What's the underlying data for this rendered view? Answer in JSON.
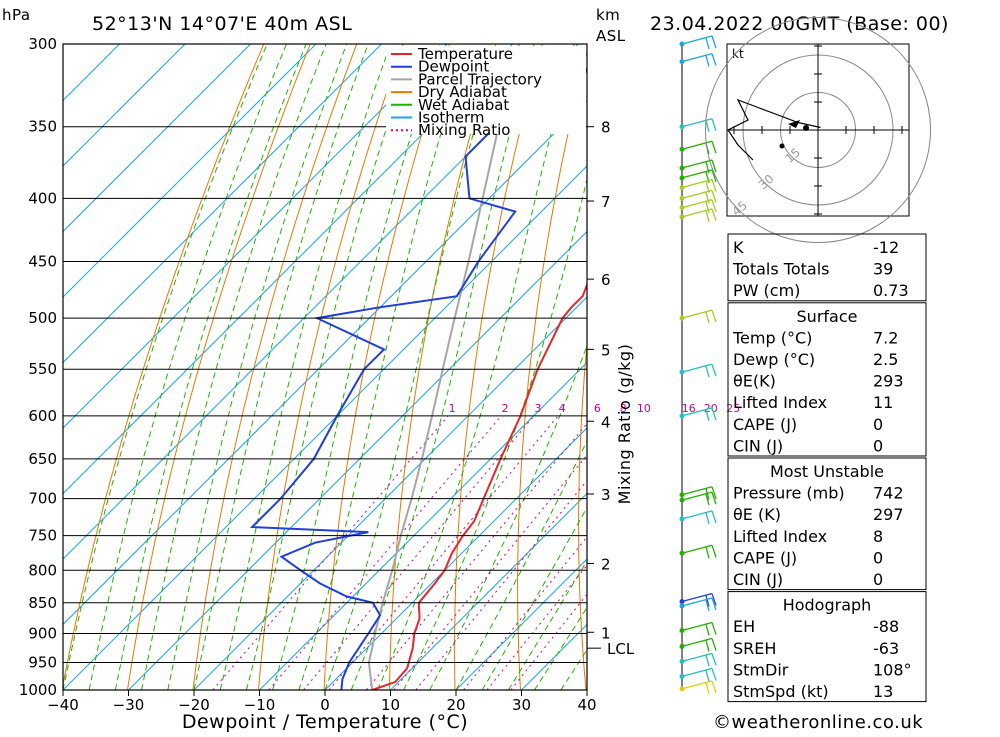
{
  "header": {
    "pressure_unit": "hPa",
    "location": "52°13'N 14°07'E 40m ASL",
    "km_unit": "km",
    "asl_unit": "ASL",
    "datetime": "23.04.2022 00GMT (Base: 00)"
  },
  "footer": {
    "copyright": "©weatheronline.co.uk"
  },
  "colors": {
    "temperature": "#e8262b",
    "dewpoint": "#1f3fdc",
    "parcel": "#a6a6a6",
    "dry_adiabat": "#e07b00",
    "wet_adiabat": "#22b000",
    "isotherm": "#1aa3e6",
    "mixing_ratio": "#cc0099"
  },
  "chart_data": {
    "type": "line",
    "title": "",
    "xlabel": "Dewpoint / Temperature (°C)",
    "ylabel": "hPa",
    "y2label": "Mixing Ratio (g/kg)",
    "xlim": [
      -40,
      40
    ],
    "ylim": [
      1000,
      300
    ],
    "y_scale": "log",
    "skew": true,
    "pressure_ticks": [
      300,
      350,
      400,
      450,
      500,
      550,
      600,
      650,
      700,
      750,
      800,
      850,
      900,
      950,
      1000
    ],
    "temp_ticks": [
      -40,
      -30,
      -20,
      -10,
      0,
      10,
      20,
      30,
      40
    ],
    "km_ticks": [
      {
        "label": "8",
        "p": 350
      },
      {
        "label": "7",
        "p": 402
      },
      {
        "label": "6",
        "p": 465
      },
      {
        "label": "5",
        "p": 530
      },
      {
        "label": "4",
        "p": 606
      },
      {
        "label": "3",
        "p": 694
      },
      {
        "label": "2",
        "p": 790
      },
      {
        "label": "1",
        "p": 898
      }
    ],
    "lcl": {
      "label": "LCL",
      "p": 925
    },
    "mixing_ratio_labels": [
      "1",
      "2",
      "3",
      "4",
      "6",
      "8",
      "10",
      "16",
      "20",
      "25"
    ],
    "legend": {
      "position": "top-right",
      "entries": [
        "Temperature",
        "Dewpoint",
        "Parcel Trajectory",
        "Dry Adiabat",
        "Wet Adiabat",
        "Isotherm",
        "Mixing Ratio"
      ]
    },
    "series": [
      {
        "name": "Temperature",
        "points": [
          [
            1000,
            7.2
          ],
          [
            985,
            9.5
          ],
          [
            960,
            9.2
          ],
          [
            925,
            7.0
          ],
          [
            900,
            5.0
          ],
          [
            875,
            3.5
          ],
          [
            850,
            1.0
          ],
          [
            820,
            0.5
          ],
          [
            800,
            0.0
          ],
          [
            775,
            -1.5
          ],
          [
            750,
            -2.5
          ],
          [
            730,
            -3.0
          ],
          [
            700,
            -5.0
          ],
          [
            650,
            -8.5
          ],
          [
            600,
            -12.0
          ],
          [
            550,
            -16.5
          ],
          [
            500,
            -20.5
          ],
          [
            490,
            -20.8
          ],
          [
            480,
            -20.8
          ],
          [
            450,
            -24.0
          ],
          [
            400,
            -30.0
          ],
          [
            350,
            -38.0
          ],
          [
            320,
            -42.5
          ],
          [
            300,
            -45.0
          ]
        ]
      },
      {
        "name": "Dewpoint",
        "points": [
          [
            1000,
            2.5
          ],
          [
            980,
            1.0
          ],
          [
            950,
            -0.5
          ],
          [
            900,
            -2.0
          ],
          [
            870,
            -3.0
          ],
          [
            850,
            -6.0
          ],
          [
            840,
            -11.0
          ],
          [
            820,
            -17.0
          ],
          [
            800,
            -22.0
          ],
          [
            780,
            -27.0
          ],
          [
            760,
            -24.0
          ],
          [
            745,
            -17.5
          ],
          [
            738,
            -36.0
          ],
          [
            710,
            -36.0
          ],
          [
            700,
            -36.0
          ],
          [
            650,
            -37.0
          ],
          [
            600,
            -40.0
          ],
          [
            550,
            -43.0
          ],
          [
            530,
            -43.0
          ],
          [
            500,
            -58.0
          ],
          [
            490,
            -50.0
          ],
          [
            480,
            -40.0
          ],
          [
            450,
            -42.0
          ],
          [
            410,
            -44.0
          ],
          [
            400,
            -53.0
          ],
          [
            370,
            -60.0
          ],
          [
            355,
            -60.0
          ],
          [
            340,
            -57.5
          ],
          [
            330,
            -56.0
          ],
          [
            320,
            -54.0
          ],
          [
            300,
            -57.0
          ]
        ]
      },
      {
        "name": "Parcel Trajectory",
        "points": [
          [
            1000,
            7.2
          ],
          [
            950,
            2.5
          ],
          [
            925,
            0.8
          ],
          [
            900,
            -1.0
          ],
          [
            850,
            -4.5
          ],
          [
            800,
            -8.0
          ],
          [
            750,
            -12.0
          ],
          [
            700,
            -16.0
          ],
          [
            650,
            -20.5
          ],
          [
            600,
            -25.5
          ],
          [
            550,
            -31.0
          ],
          [
            500,
            -37.0
          ],
          [
            450,
            -43.5
          ],
          [
            400,
            -51.0
          ],
          [
            350,
            -59.5
          ],
          [
            300,
            -69.0
          ]
        ]
      }
    ],
    "hodograph": {
      "unit": "kt",
      "rings": [
        {
          "label": "15",
          "r": 15
        },
        {
          "label": "30",
          "r": 30
        },
        {
          "label": "45",
          "r": 45
        }
      ],
      "trace": [
        [
          0.5,
          0.5
        ],
        [
          -4,
          1.5
        ],
        [
          -8,
          3
        ],
        [
          -12,
          4.5
        ],
        [
          -16,
          6
        ],
        [
          -14,
          2
        ],
        [
          -18,
          0
        ],
        [
          -16,
          -3
        ],
        [
          -13,
          -6
        ]
      ]
    },
    "wind_barbs": [
      {
        "p": 300,
        "color": "#1aa3e6"
      },
      {
        "p": 310,
        "color": "#1aa3e6"
      },
      {
        "p": 350,
        "color": "#22c0c0"
      },
      {
        "p": 365,
        "color": "#22b000"
      },
      {
        "p": 378,
        "color": "#22b000"
      },
      {
        "p": 385,
        "color": "#22b000"
      },
      {
        "p": 392,
        "color": "#a0d020"
      },
      {
        "p": 400,
        "color": "#a0d020"
      },
      {
        "p": 407,
        "color": "#a0d020"
      },
      {
        "p": 414,
        "color": "#a0d020"
      },
      {
        "p": 500,
        "color": "#a0d020"
      },
      {
        "p": 553,
        "color": "#22c0c0"
      },
      {
        "p": 600,
        "color": "#22c0c0"
      },
      {
        "p": 695,
        "color": "#22b000"
      },
      {
        "p": 702,
        "color": "#22b000"
      },
      {
        "p": 727,
        "color": "#22c0c0"
      },
      {
        "p": 775,
        "color": "#22b000"
      },
      {
        "p": 848,
        "color": "#1f3fdc"
      },
      {
        "p": 855,
        "color": "#1aa3e6"
      },
      {
        "p": 895,
        "color": "#22b000"
      },
      {
        "p": 922,
        "color": "#22b000"
      },
      {
        "p": 948,
        "color": "#22c0c0"
      },
      {
        "p": 975,
        "color": "#22c0c0"
      },
      {
        "p": 998,
        "color": "#e0d000"
      }
    ]
  },
  "indices": {
    "top": [
      {
        "label": "K",
        "value": "-12"
      },
      {
        "label": "Totals Totals",
        "value": "39"
      },
      {
        "label": "PW (cm)",
        "value": "0.73"
      }
    ],
    "surface": {
      "title": "Surface",
      "rows": [
        {
          "label": "Temp (°C)",
          "value": "7.2"
        },
        {
          "label": "Dewp (°C)",
          "value": "2.5"
        },
        {
          "label": "θE(K)",
          "value": "293"
        },
        {
          "label": "Lifted Index",
          "value": "11"
        },
        {
          "label": "CAPE (J)",
          "value": "0"
        },
        {
          "label": "CIN (J)",
          "value": "0"
        }
      ]
    },
    "most_unstable": {
      "title": "Most Unstable",
      "rows": [
        {
          "label": "Pressure (mb)",
          "value": "742"
        },
        {
          "label": "θE (K)",
          "value": "297"
        },
        {
          "label": "Lifted Index",
          "value": "8"
        },
        {
          "label": "CAPE (J)",
          "value": "0"
        },
        {
          "label": "CIN (J)",
          "value": "0"
        }
      ]
    },
    "hodograph": {
      "title": "Hodograph",
      "rows": [
        {
          "label": "EH",
          "value": "-88"
        },
        {
          "label": "SREH",
          "value": "-63"
        },
        {
          "label": "StmDir",
          "value": "108°"
        },
        {
          "label": "StmSpd (kt)",
          "value": "13"
        }
      ]
    }
  }
}
